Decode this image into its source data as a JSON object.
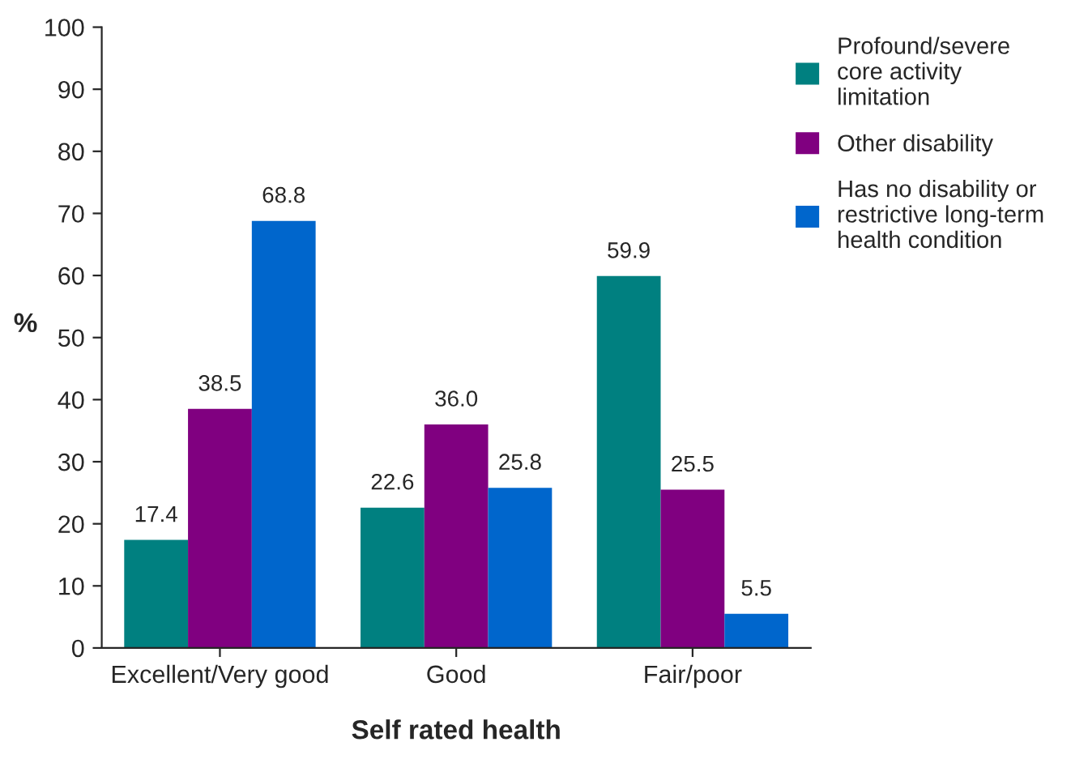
{
  "chart_data": {
    "type": "bar",
    "xlabel": "Self rated health",
    "ylabel": "%",
    "categories": [
      "Excellent/Very good",
      "Good",
      "Fair/poor"
    ],
    "series": [
      {
        "name": "Profound/severe\ncore activity\nlimitation",
        "color": "#008080",
        "values": [
          17.4,
          22.6,
          59.9
        ],
        "value_labels": [
          "17.4",
          "22.6",
          "59.9"
        ]
      },
      {
        "name": "Other disability",
        "color": "#800080",
        "values": [
          38.5,
          36.0,
          25.5
        ],
        "value_labels": [
          "38.5",
          "36.0",
          "25.5"
        ]
      },
      {
        "name": "Has no disability or\nrestrictive long-term\nhealth condition",
        "color": "#0066cc",
        "values": [
          68.8,
          25.8,
          5.5
        ],
        "value_labels": [
          "68.8",
          "25.8",
          "5.5"
        ]
      }
    ],
    "ylim": [
      0,
      100
    ],
    "yticks": [
      0,
      10,
      20,
      30,
      40,
      50,
      60,
      70,
      80,
      90,
      100
    ],
    "grid": false,
    "legend": "top right"
  }
}
